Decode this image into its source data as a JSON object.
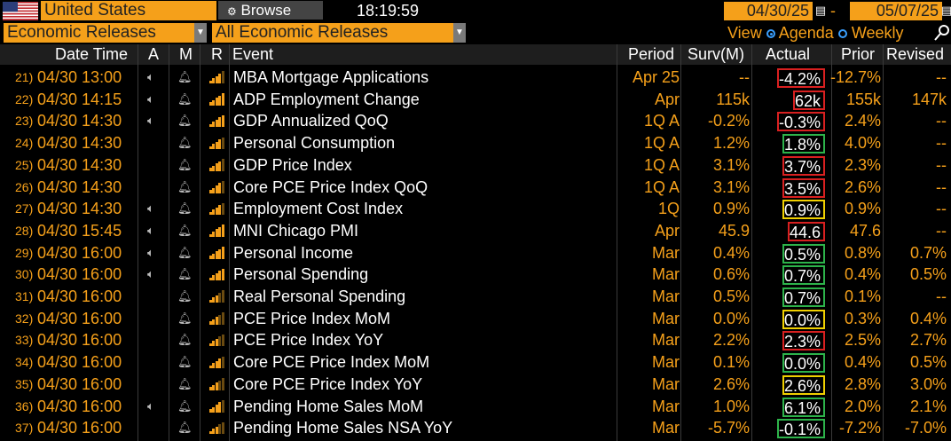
{
  "toolbar": {
    "country": "United States",
    "browse_label": "Browse",
    "time": "18:19:59",
    "start_date": "04/30/25",
    "end_date": "05/07/25",
    "category": "Economic Releases",
    "subcategory": "All Economic Releases",
    "view_label": "View",
    "view_options": [
      "Agenda",
      "Weekly"
    ],
    "view_selected": "Agenda"
  },
  "columns": {
    "datetime": "Date Time",
    "a": "A",
    "m": "M",
    "r": "R",
    "event": "Event",
    "period": "Period",
    "surv": "Surv(M)",
    "actual": "Actual",
    "prior": "Prior",
    "revised": "Revised"
  },
  "colors": {
    "accent": "#f5a01a",
    "beat": "#2db34a",
    "miss": "#d92020",
    "inline": "#f0d000"
  },
  "rows": [
    {
      "idx": "21)",
      "datetime": "04/30 13:00",
      "alarm": true,
      "event": "MBA Mortgage Applications",
      "period": "Apr 25",
      "surv": "--",
      "actual": "-4.2%",
      "prior": "-12.7%",
      "revised": "--",
      "box": "red",
      "relevance": 4
    },
    {
      "idx": "22)",
      "datetime": "04/30 14:15",
      "alarm": true,
      "event": "ADP Employment Change",
      "period": "Apr",
      "surv": "115k",
      "actual": "62k",
      "prior": "155k",
      "revised": "147k",
      "box": "red",
      "relevance": 5
    },
    {
      "idx": "23)",
      "datetime": "04/30 14:30",
      "alarm": true,
      "event": "GDP Annualized QoQ",
      "period": "1Q A",
      "surv": "-0.2%",
      "actual": "-0.3%",
      "prior": "2.4%",
      "revised": "--",
      "box": "red",
      "relevance": 5
    },
    {
      "idx": "24)",
      "datetime": "04/30 14:30",
      "alarm": false,
      "event": "Personal Consumption",
      "period": "1Q A",
      "surv": "1.2%",
      "actual": "1.8%",
      "prior": "4.0%",
      "revised": "--",
      "box": "green",
      "relevance": 4
    },
    {
      "idx": "25)",
      "datetime": "04/30 14:30",
      "alarm": false,
      "event": "GDP Price Index",
      "period": "1Q A",
      "surv": "3.1%",
      "actual": "3.7%",
      "prior": "2.3%",
      "revised": "--",
      "box": "red",
      "relevance": 4
    },
    {
      "idx": "26)",
      "datetime": "04/30 14:30",
      "alarm": false,
      "event": "Core PCE Price Index QoQ",
      "period": "1Q A",
      "surv": "3.1%",
      "actual": "3.5%",
      "prior": "2.6%",
      "revised": "--",
      "box": "red",
      "relevance": 4
    },
    {
      "idx": "27)",
      "datetime": "04/30 14:30",
      "alarm": true,
      "event": "Employment Cost Index",
      "period": "1Q",
      "surv": "0.9%",
      "actual": "0.9%",
      "prior": "0.9%",
      "revised": "--",
      "box": "yellow",
      "relevance": 4
    },
    {
      "idx": "28)",
      "datetime": "04/30 15:45",
      "alarm": true,
      "event": "MNI Chicago PMI",
      "period": "Apr",
      "surv": "45.9",
      "actual": "44.6",
      "prior": "47.6",
      "revised": "--",
      "box": "red",
      "relevance": 5
    },
    {
      "idx": "29)",
      "datetime": "04/30 16:00",
      "alarm": true,
      "event": "Personal Income",
      "period": "Mar",
      "surv": "0.4%",
      "actual": "0.5%",
      "prior": "0.8%",
      "revised": "0.7%",
      "box": "green",
      "relevance": 5
    },
    {
      "idx": "30)",
      "datetime": "04/30 16:00",
      "alarm": true,
      "event": "Personal Spending",
      "period": "Mar",
      "surv": "0.6%",
      "actual": "0.7%",
      "prior": "0.4%",
      "revised": "0.5%",
      "box": "green",
      "relevance": 5
    },
    {
      "idx": "31)",
      "datetime": "04/30 16:00",
      "alarm": false,
      "event": "Real Personal Spending",
      "period": "Mar",
      "surv": "0.5%",
      "actual": "0.7%",
      "prior": "0.1%",
      "revised": "--",
      "box": "green",
      "relevance": 3
    },
    {
      "idx": "32)",
      "datetime": "04/30 16:00",
      "alarm": false,
      "event": "PCE Price Index MoM",
      "period": "Mar",
      "surv": "0.0%",
      "actual": "0.0%",
      "prior": "0.3%",
      "revised": "0.4%",
      "box": "yellow",
      "relevance": 3
    },
    {
      "idx": "33)",
      "datetime": "04/30 16:00",
      "alarm": false,
      "event": "PCE Price Index YoY",
      "period": "Mar",
      "surv": "2.2%",
      "actual": "2.3%",
      "prior": "2.5%",
      "revised": "2.7%",
      "box": "red",
      "relevance": 3
    },
    {
      "idx": "34)",
      "datetime": "04/30 16:00",
      "alarm": false,
      "event": "Core PCE Price Index MoM",
      "period": "Mar",
      "surv": "0.1%",
      "actual": "0.0%",
      "prior": "0.4%",
      "revised": "0.5%",
      "box": "green",
      "relevance": 4
    },
    {
      "idx": "35)",
      "datetime": "04/30 16:00",
      "alarm": false,
      "event": "Core PCE Price Index YoY",
      "period": "Mar",
      "surv": "2.6%",
      "actual": "2.6%",
      "prior": "2.8%",
      "revised": "3.0%",
      "box": "yellow",
      "relevance": 3
    },
    {
      "idx": "36)",
      "datetime": "04/30 16:00",
      "alarm": true,
      "event": "Pending Home Sales MoM",
      "period": "Mar",
      "surv": "1.0%",
      "actual": "6.1%",
      "prior": "2.0%",
      "revised": "2.1%",
      "box": "green",
      "relevance": 4
    },
    {
      "idx": "37)",
      "datetime": "04/30 16:00",
      "alarm": false,
      "event": "Pending Home Sales NSA YoY",
      "period": "Mar",
      "surv": "-5.7%",
      "actual": "-0.1%",
      "prior": "-7.2%",
      "revised": "-7.0%",
      "box": "green",
      "relevance": 3
    }
  ]
}
